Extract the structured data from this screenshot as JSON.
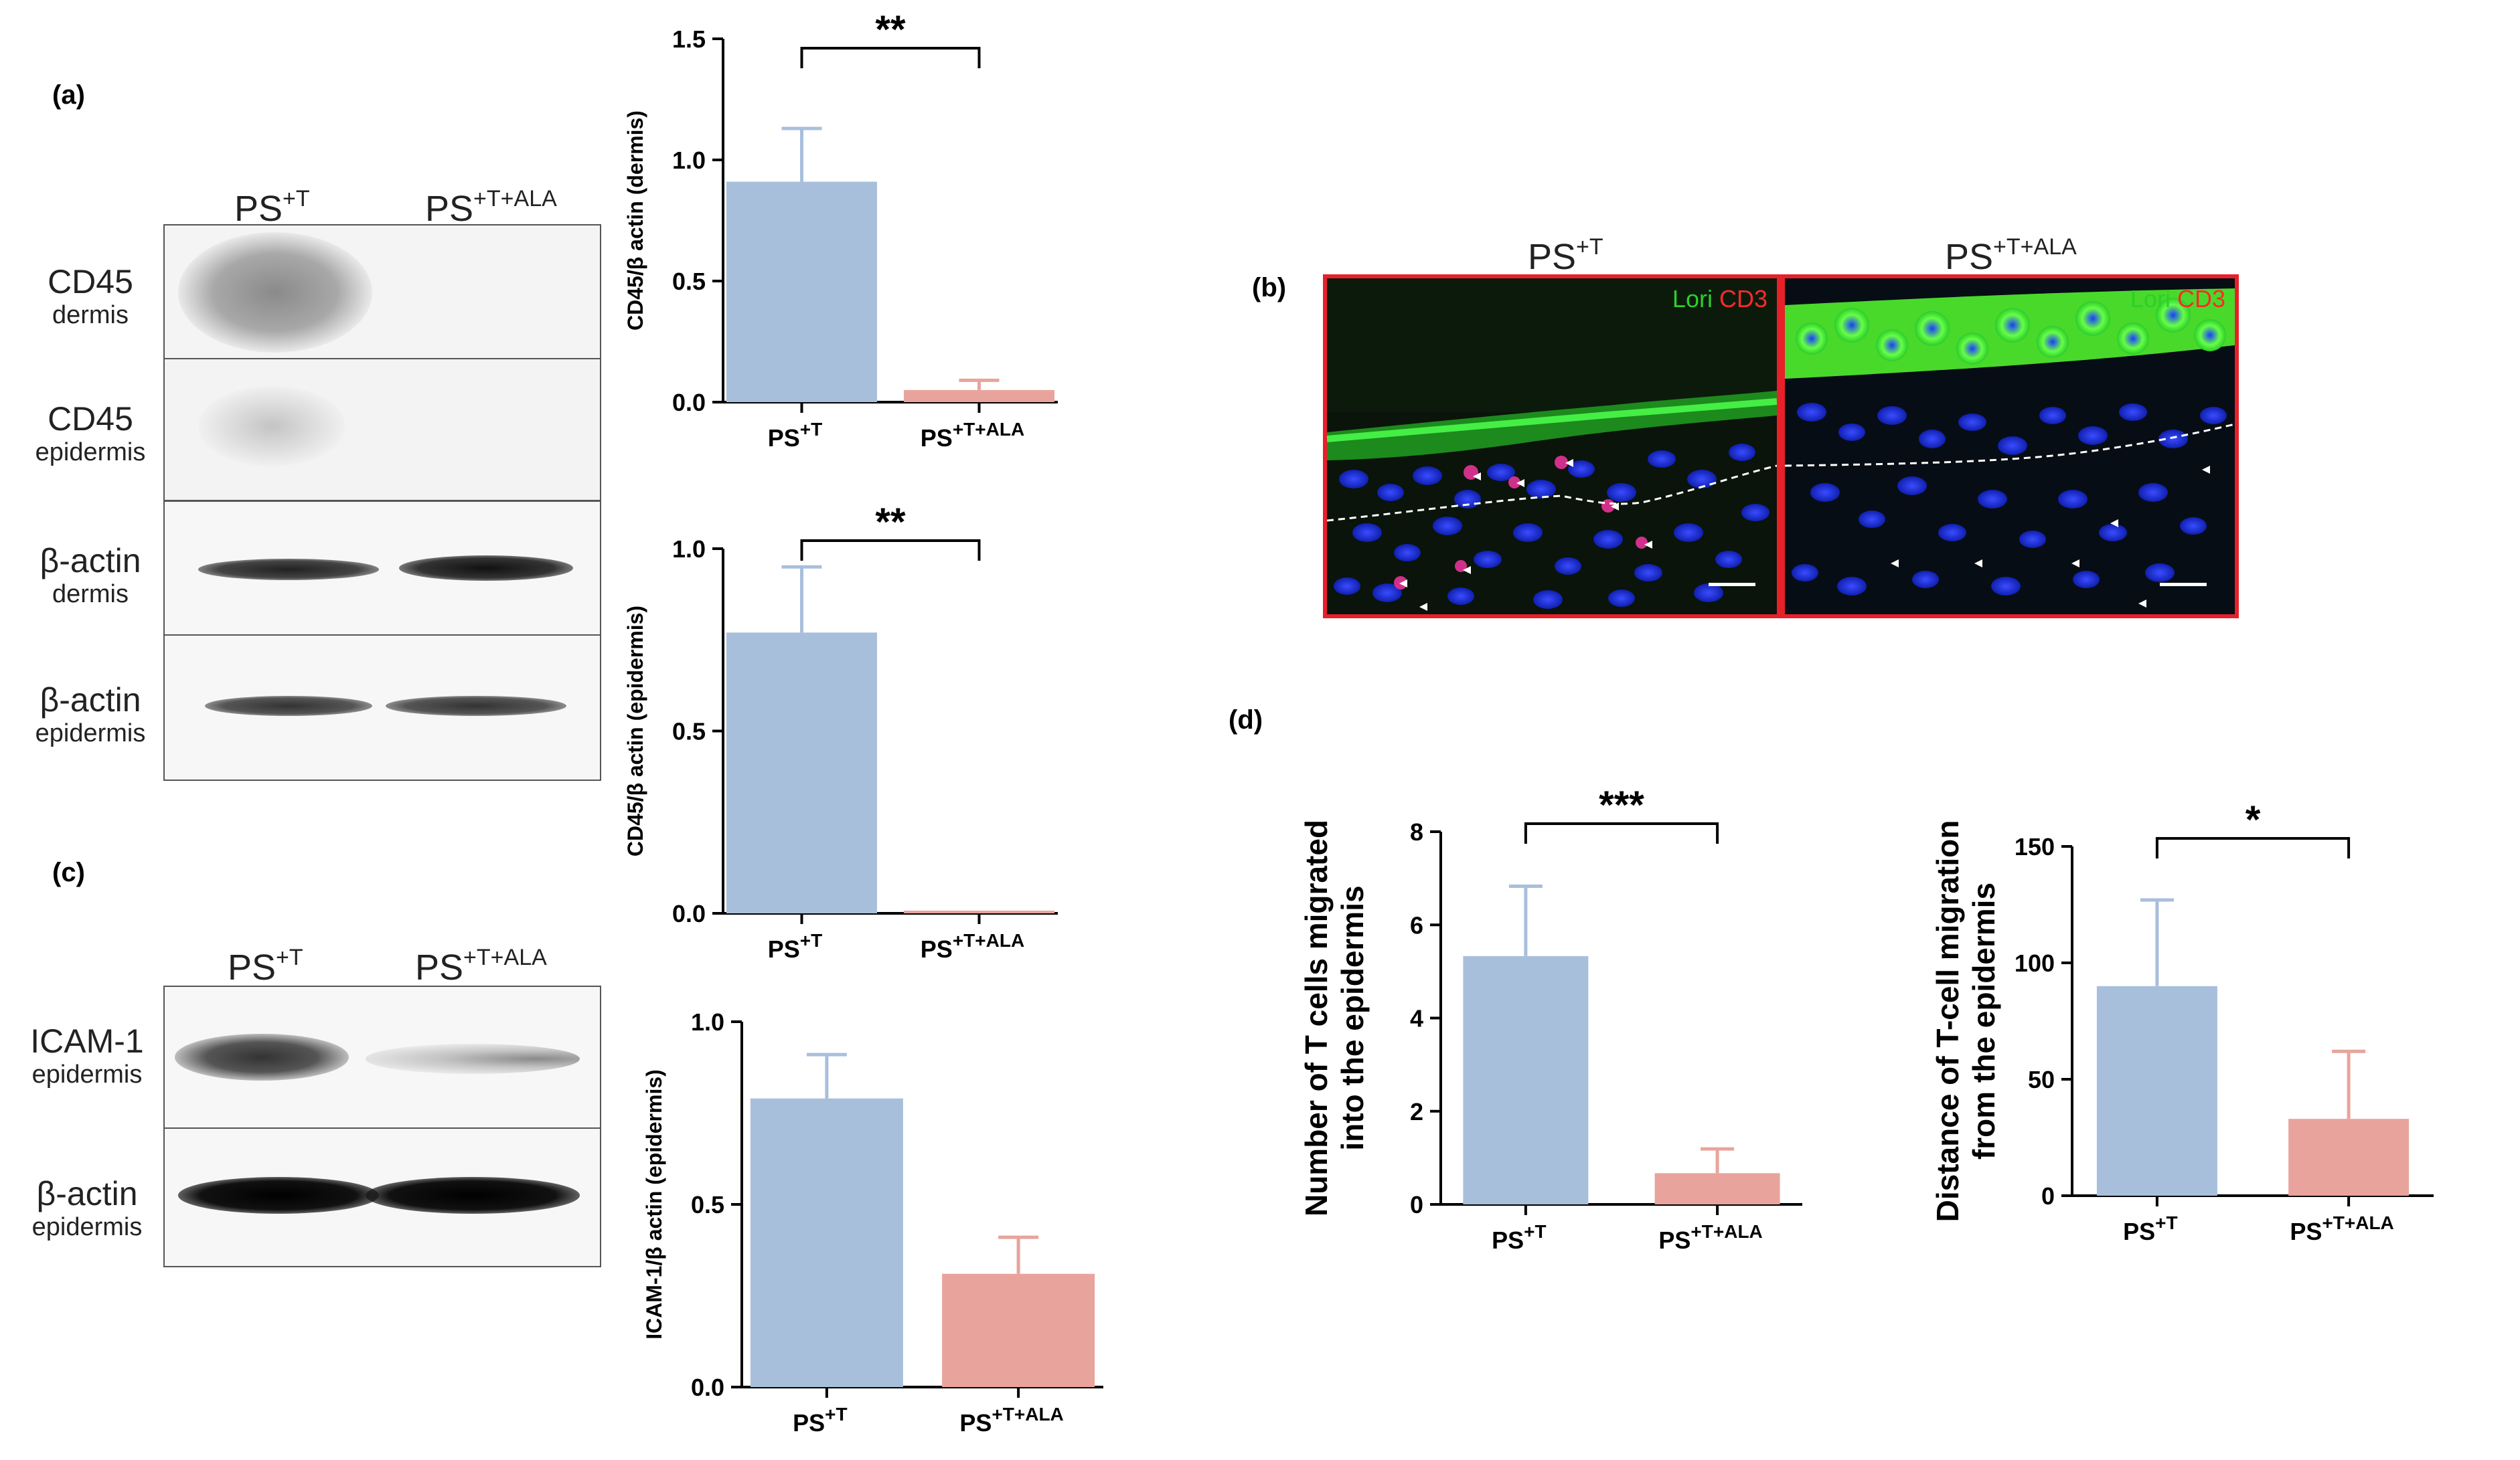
{
  "panels": {
    "a": "(a)",
    "b": "(b)",
    "c": "(c)",
    "d": "(d)"
  },
  "group_labels": {
    "ctrl_base": "PS",
    "ctrl_sup": "+T",
    "ala_base": "PS",
    "ala_sup": "+T+ALA"
  },
  "blots_a": {
    "rows": [
      {
        "main": "CD45",
        "sub": "dermis"
      },
      {
        "main": "CD45",
        "sub": "epidermis"
      },
      {
        "main": "β-actin",
        "sub": "dermis"
      },
      {
        "main": "β-actin",
        "sub": "epidermis"
      }
    ]
  },
  "blots_c": {
    "rows": [
      {
        "main": "ICAM-1",
        "sub": "epidermis"
      },
      {
        "main": "β-actin",
        "sub": "epidermis"
      }
    ]
  },
  "micrographs": {
    "legend_green": "Lori",
    "legend_red": "CD3",
    "colors": {
      "green": "#2bd02b",
      "red": "#ff2a2a",
      "frame": "#e8202a",
      "nuclei": "#2233dd"
    }
  },
  "colors": {
    "ctrl": "#a8bfdc",
    "ala": "#e8a49c",
    "ctrl_err": "#a8bfdc",
    "ala_err": "#e8a49c"
  },
  "chart_data": [
    {
      "id": "cd45_dermis",
      "type": "bar",
      "categories": [
        "PS+T",
        "PS+T+ALA"
      ],
      "values": [
        0.91,
        0.05
      ],
      "errors": [
        0.22,
        0.04
      ],
      "ylabel": "CD45/β actin (dermis)",
      "ylim": [
        0,
        1.5
      ],
      "yticks": [
        "0.0",
        "0.5",
        "1.0",
        "1.5"
      ],
      "significance": "**"
    },
    {
      "id": "cd45_epidermis",
      "type": "bar",
      "categories": [
        "PS+T",
        "PS+T+ALA"
      ],
      "values": [
        0.77,
        0.0
      ],
      "errors": [
        0.18,
        0.0
      ],
      "ylabel": "CD45/β actin (epidermis)",
      "ylim": [
        0,
        1.0
      ],
      "yticks": [
        "0.0",
        "0.5",
        "1.0"
      ],
      "significance": "**"
    },
    {
      "id": "icam1_epidermis",
      "type": "bar",
      "categories": [
        "PS+T",
        "PS+T+ALA"
      ],
      "values": [
        0.79,
        0.31
      ],
      "errors": [
        0.12,
        0.1
      ],
      "ylabel": "ICAM-1/β actin (epidermis)",
      "ylim": [
        0,
        1.0
      ],
      "yticks": [
        "0.0",
        "0.5",
        "1.0"
      ],
      "significance": ""
    },
    {
      "id": "tcell_number",
      "type": "bar",
      "categories": [
        "PS+T",
        "PS+T+ALA"
      ],
      "values": [
        5.33,
        0.67
      ],
      "errors": [
        1.5,
        0.52
      ],
      "ylabel": "Number of T cells migrated into the epidermis",
      "ylabel_lines": [
        "Number of T cells migrated",
        "into the epidermis"
      ],
      "ylim": [
        0,
        8
      ],
      "yticks": [
        "0",
        "2",
        "4",
        "6",
        "8"
      ],
      "significance": "***"
    },
    {
      "id": "tcell_distance",
      "type": "bar",
      "categories": [
        "PS+T",
        "PS+T+ALA"
      ],
      "values": [
        90,
        33
      ],
      "errors": [
        37,
        29
      ],
      "ylabel": "Distance of T-cell migration from the epidermis",
      "ylabel_lines": [
        "Distance of T-cell migration",
        "from the epidermis"
      ],
      "ylim": [
        0,
        150
      ],
      "yticks": [
        "0",
        "50",
        "100",
        "150"
      ],
      "significance": "*"
    }
  ]
}
